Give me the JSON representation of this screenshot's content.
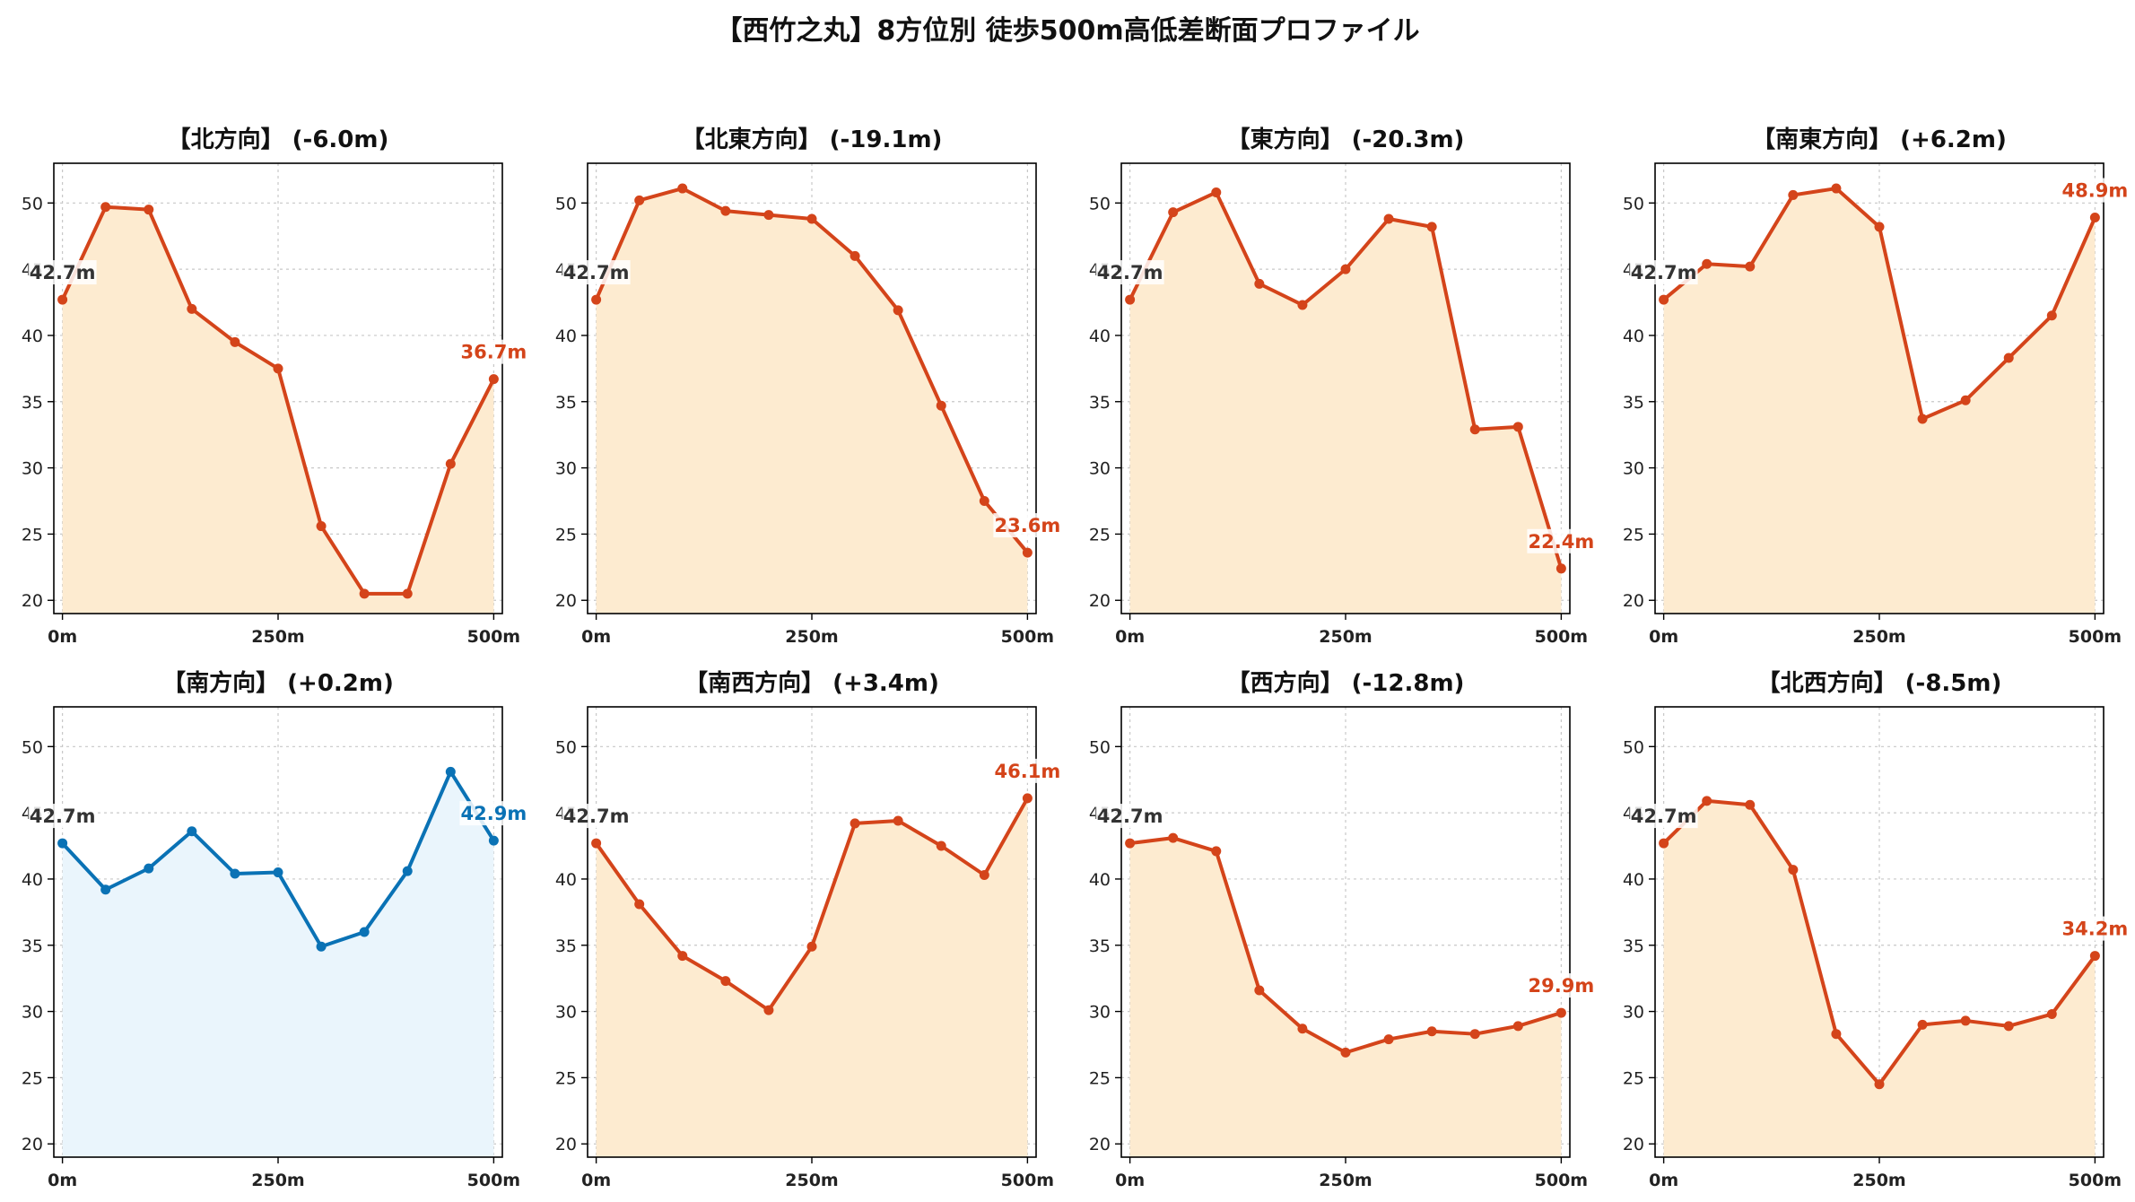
{
  "title": "【西竹之丸】8方位別 徒歩500m高低差断面プロファイル",
  "colors": {
    "down": "#d4441a",
    "down_fill": "#fdebd0",
    "up": "#0a72b5",
    "up_fill": "#eaf5fc",
    "start_label": "#333333"
  },
  "chart_data": [
    {
      "type": "area",
      "title": "【北方向】 (-6.0m)",
      "x": [
        0,
        50,
        100,
        150,
        200,
        250,
        300,
        350,
        400,
        450,
        500
      ],
      "values": [
        42.7,
        49.7,
        49.5,
        42.0,
        39.5,
        37.5,
        25.6,
        20.5,
        20.5,
        30.3,
        36.7
      ],
      "start_label": "42.7m",
      "end_label": "36.7m",
      "style": "down",
      "xticks": [
        "0m",
        "250m",
        "500m"
      ],
      "yticks": [
        20,
        25,
        30,
        35,
        40,
        45,
        50
      ],
      "ylim": [
        19,
        53
      ],
      "xlim": [
        -10,
        510
      ],
      "grid": true
    },
    {
      "type": "area",
      "title": "【北東方向】 (-19.1m)",
      "x": [
        0,
        50,
        100,
        150,
        200,
        250,
        300,
        350,
        400,
        450,
        500
      ],
      "values": [
        42.7,
        50.2,
        51.1,
        49.4,
        49.1,
        48.8,
        46.0,
        41.9,
        34.7,
        27.5,
        23.6
      ],
      "start_label": "42.7m",
      "end_label": "23.6m",
      "style": "down",
      "xticks": [
        "0m",
        "250m",
        "500m"
      ],
      "yticks": [
        20,
        25,
        30,
        35,
        40,
        45,
        50
      ],
      "ylim": [
        19,
        53
      ],
      "xlim": [
        -10,
        510
      ],
      "grid": true
    },
    {
      "type": "area",
      "title": "【東方向】 (-20.3m)",
      "x": [
        0,
        50,
        100,
        150,
        200,
        250,
        300,
        350,
        400,
        450,
        500
      ],
      "values": [
        42.7,
        49.3,
        50.8,
        43.9,
        42.3,
        45.0,
        48.8,
        48.2,
        32.9,
        33.1,
        22.4
      ],
      "start_label": "42.7m",
      "end_label": "22.4m",
      "style": "down",
      "xticks": [
        "0m",
        "250m",
        "500m"
      ],
      "yticks": [
        20,
        25,
        30,
        35,
        40,
        45,
        50
      ],
      "ylim": [
        19,
        53
      ],
      "xlim": [
        -10,
        510
      ],
      "grid": true
    },
    {
      "type": "area",
      "title": "【南東方向】 (+6.2m)",
      "x": [
        0,
        50,
        100,
        150,
        200,
        250,
        300,
        350,
        400,
        450,
        500
      ],
      "values": [
        42.7,
        45.4,
        45.2,
        50.6,
        51.1,
        48.2,
        33.7,
        35.1,
        38.3,
        41.5,
        48.9
      ],
      "start_label": "42.7m",
      "end_label": "48.9m",
      "style": "down",
      "xticks": [
        "0m",
        "250m",
        "500m"
      ],
      "yticks": [
        20,
        25,
        30,
        35,
        40,
        45,
        50
      ],
      "ylim": [
        19,
        53
      ],
      "xlim": [
        -10,
        510
      ],
      "grid": true
    },
    {
      "type": "area",
      "title": "【南方向】 (+0.2m)",
      "x": [
        0,
        50,
        100,
        150,
        200,
        250,
        300,
        350,
        400,
        450,
        500
      ],
      "values": [
        42.7,
        39.2,
        40.8,
        43.6,
        40.4,
        40.5,
        34.9,
        36.0,
        40.6,
        48.1,
        42.9
      ],
      "start_label": "42.7m",
      "end_label": "42.9m",
      "style": "up",
      "xticks": [
        "0m",
        "250m",
        "500m"
      ],
      "yticks": [
        20,
        25,
        30,
        35,
        40,
        45,
        50
      ],
      "ylim": [
        19,
        53
      ],
      "xlim": [
        -10,
        510
      ],
      "grid": true
    },
    {
      "type": "area",
      "title": "【南西方向】 (+3.4m)",
      "x": [
        0,
        50,
        100,
        150,
        200,
        250,
        300,
        350,
        400,
        450,
        500
      ],
      "values": [
        42.7,
        38.1,
        34.2,
        32.3,
        30.1,
        34.9,
        44.2,
        44.4,
        42.5,
        40.3,
        46.1
      ],
      "start_label": "42.7m",
      "end_label": "46.1m",
      "style": "down",
      "xticks": [
        "0m",
        "250m",
        "500m"
      ],
      "yticks": [
        20,
        25,
        30,
        35,
        40,
        45,
        50
      ],
      "ylim": [
        19,
        53
      ],
      "xlim": [
        -10,
        510
      ],
      "grid": true
    },
    {
      "type": "area",
      "title": "【西方向】 (-12.8m)",
      "x": [
        0,
        50,
        100,
        150,
        200,
        250,
        300,
        350,
        400,
        450,
        500
      ],
      "values": [
        42.7,
        43.1,
        42.1,
        31.6,
        28.7,
        26.9,
        27.9,
        28.5,
        28.3,
        28.9,
        29.9
      ],
      "start_label": "42.7m",
      "end_label": "29.9m",
      "style": "down",
      "xticks": [
        "0m",
        "250m",
        "500m"
      ],
      "yticks": [
        20,
        25,
        30,
        35,
        40,
        45,
        50
      ],
      "ylim": [
        19,
        53
      ],
      "xlim": [
        -10,
        510
      ],
      "grid": true
    },
    {
      "type": "area",
      "title": "【北西方向】 (-8.5m)",
      "x": [
        0,
        50,
        100,
        150,
        200,
        250,
        300,
        350,
        400,
        450,
        500
      ],
      "values": [
        42.7,
        45.9,
        45.6,
        40.7,
        28.3,
        24.5,
        29.0,
        29.3,
        28.9,
        29.8,
        34.2
      ],
      "start_label": "42.7m",
      "end_label": "34.2m",
      "style": "down",
      "xticks": [
        "0m",
        "250m",
        "500m"
      ],
      "yticks": [
        20,
        25,
        30,
        35,
        40,
        45,
        50
      ],
      "ylim": [
        19,
        53
      ],
      "xlim": [
        -10,
        510
      ],
      "grid": true
    }
  ]
}
